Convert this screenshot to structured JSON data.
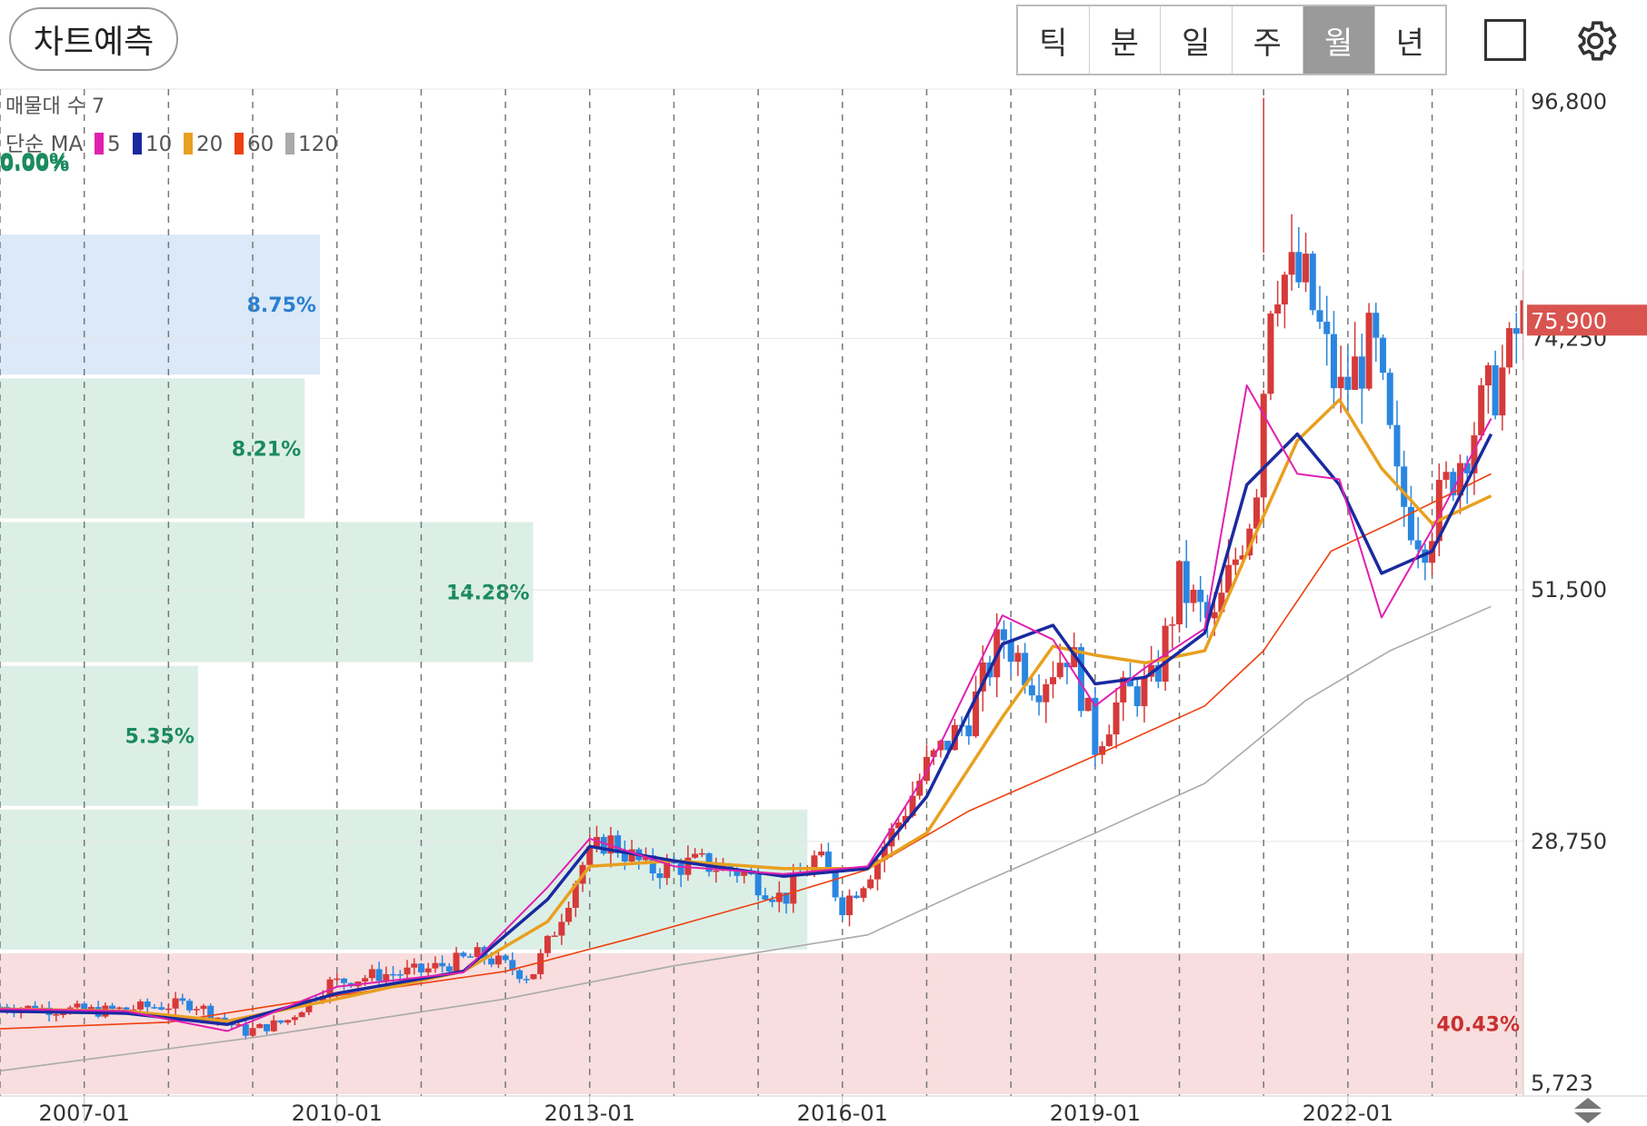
{
  "toolbar": {
    "predict_label": "차트예측",
    "periods": [
      "틱",
      "분",
      "일",
      "주",
      "월",
      "년"
    ],
    "active_period": "월"
  },
  "legend": {
    "volume_profile_label": "매물대 수 7",
    "ma_label": "단순 MA",
    "ma_series": [
      {
        "period": "5",
        "color": "#e020b0"
      },
      {
        "period": "10",
        "color": "#1a2aa0"
      },
      {
        "period": "20",
        "color": "#e8a020"
      },
      {
        "period": "60",
        "color": "#ee4010"
      },
      {
        "period": "120",
        "color": "#aaaaaa"
      }
    ]
  },
  "colors": {
    "up": "#d63a3a",
    "down": "#2a86e0",
    "last_price_bg": "#d9534f"
  },
  "chart_data": {
    "type": "candlestick",
    "x_ticks": [
      "2007-01",
      "2010-01",
      "2013-01",
      "2016-01",
      "2019-01",
      "2022-01"
    ],
    "x_range": [
      "2006-01",
      "2024-02"
    ],
    "y_ticks": [
      "96,800",
      "74,250",
      "51,500",
      "28,750",
      "5,723"
    ],
    "y_range": [
      5723,
      96800
    ],
    "last_price": "75,900",
    "grid": "vertical dashed",
    "volume_profile": [
      {
        "low": 5723,
        "high": 18800,
        "percent": "40.43%",
        "share": 1.0,
        "color": "red"
      },
      {
        "low": 18800,
        "high": 31800,
        "percent": "",
        "share": 0.53,
        "color": "green"
      },
      {
        "low": 31800,
        "high": 44800,
        "percent": "5.35%",
        "share": 0.13,
        "color": "green"
      },
      {
        "low": 44800,
        "high": 57800,
        "percent": "14.28%",
        "share": 0.35,
        "color": "green"
      },
      {
        "low": 57800,
        "high": 70800,
        "percent": "8.21%",
        "share": 0.2,
        "color": "green"
      },
      {
        "low": 70800,
        "high": 83800,
        "percent": "8.75%",
        "share": 0.21,
        "color": "blue"
      },
      {
        "low": 83800,
        "high": 96800,
        "percent": "0.00%",
        "share": 0.0,
        "color": "green"
      }
    ],
    "ma_values": {
      "5": [
        [
          2006.0,
          13600
        ],
        [
          2007.5,
          13400
        ],
        [
          2008.7,
          11600
        ],
        [
          2010.0,
          15600
        ],
        [
          2011.5,
          16900
        ],
        [
          2012.5,
          24600
        ],
        [
          2013.0,
          29000
        ],
        [
          2014.0,
          26500
        ],
        [
          2015.3,
          25800
        ],
        [
          2016.3,
          26500
        ],
        [
          2017.0,
          35000
        ],
        [
          2017.9,
          49200
        ],
        [
          2018.5,
          47000
        ],
        [
          2019.0,
          41000
        ],
        [
          2019.6,
          44500
        ],
        [
          2020.3,
          48000
        ],
        [
          2020.8,
          70000
        ],
        [
          2021.4,
          62000
        ],
        [
          2021.9,
          61500
        ],
        [
          2022.4,
          49000
        ],
        [
          2023.0,
          57000
        ],
        [
          2023.7,
          67000
        ]
      ],
      "10": [
        [
          2006.0,
          13400
        ],
        [
          2007.5,
          13200
        ],
        [
          2008.7,
          12200
        ],
        [
          2010.0,
          15000
        ],
        [
          2011.5,
          17000
        ],
        [
          2012.5,
          23500
        ],
        [
          2013.0,
          28300
        ],
        [
          2014.0,
          27000
        ],
        [
          2015.3,
          25600
        ],
        [
          2016.3,
          26300
        ],
        [
          2017.0,
          32800
        ],
        [
          2017.9,
          46600
        ],
        [
          2018.5,
          48300
        ],
        [
          2019.0,
          43000
        ],
        [
          2019.6,
          43600
        ],
        [
          2020.3,
          47600
        ],
        [
          2020.8,
          61000
        ],
        [
          2021.4,
          65600
        ],
        [
          2021.9,
          61000
        ],
        [
          2022.4,
          53000
        ],
        [
          2023.0,
          55000
        ],
        [
          2023.7,
          65600
        ]
      ],
      "20": [
        [
          2006.0,
          13600
        ],
        [
          2007.5,
          13400
        ],
        [
          2008.7,
          12500
        ],
        [
          2010.0,
          14500
        ],
        [
          2011.5,
          17000
        ],
        [
          2012.5,
          21500
        ],
        [
          2013.0,
          26500
        ],
        [
          2014.0,
          27000
        ],
        [
          2015.3,
          26300
        ],
        [
          2016.3,
          26300
        ],
        [
          2017.0,
          29500
        ],
        [
          2017.9,
          40000
        ],
        [
          2018.5,
          46400
        ],
        [
          2019.0,
          45600
        ],
        [
          2019.6,
          44900
        ],
        [
          2020.3,
          46000
        ],
        [
          2020.8,
          54800
        ],
        [
          2021.4,
          65000
        ],
        [
          2021.9,
          68700
        ],
        [
          2022.4,
          62500
        ],
        [
          2023.0,
          57500
        ],
        [
          2023.7,
          60000
        ]
      ],
      "60": [
        [
          2006.0,
          11800
        ],
        [
          2008.0,
          12400
        ],
        [
          2010.0,
          14800
        ],
        [
          2012.0,
          17000
        ],
        [
          2013.5,
          20000
        ],
        [
          2015.0,
          23200
        ],
        [
          2016.3,
          26200
        ],
        [
          2017.5,
          31500
        ],
        [
          2019.0,
          36500
        ],
        [
          2020.3,
          41000
        ],
        [
          2021.0,
          46000
        ],
        [
          2021.8,
          55000
        ],
        [
          2022.5,
          57500
        ],
        [
          2023.7,
          62000
        ]
      ],
      "120": [
        [
          2006.0,
          8000
        ],
        [
          2009.0,
          11000
        ],
        [
          2012.0,
          14500
        ],
        [
          2014.0,
          17500
        ],
        [
          2016.3,
          20300
        ],
        [
          2017.5,
          24500
        ],
        [
          2019.0,
          29500
        ],
        [
          2020.3,
          34000
        ],
        [
          2021.5,
          41500
        ],
        [
          2022.5,
          46000
        ],
        [
          2023.7,
          50000
        ]
      ]
    },
    "price_path": [
      [
        2006.0,
        13800
      ],
      [
        2006.6,
        13600
      ],
      [
        2007.2,
        13400
      ],
      [
        2007.8,
        13800
      ],
      [
        2008.3,
        14100
      ],
      [
        2008.9,
        11500
      ],
      [
        2009.4,
        12500
      ],
      [
        2009.9,
        15900
      ],
      [
        2010.5,
        16700
      ],
      [
        2011.0,
        17000
      ],
      [
        2011.7,
        18500
      ],
      [
        2012.3,
        16500
      ],
      [
        2012.6,
        21000
      ],
      [
        2012.9,
        26500
      ],
      [
        2013.2,
        29000
      ],
      [
        2013.7,
        26200
      ],
      [
        2014.3,
        26800
      ],
      [
        2014.8,
        26000
      ],
      [
        2015.3,
        23500
      ],
      [
        2015.7,
        27500
      ],
      [
        2016.0,
        23000
      ],
      [
        2016.3,
        25800
      ],
      [
        2016.7,
        31000
      ],
      [
        2017.0,
        35500
      ],
      [
        2017.5,
        40000
      ],
      [
        2017.9,
        47500
      ],
      [
        2018.3,
        43000
      ],
      [
        2018.7,
        46300
      ],
      [
        2019.0,
        37500
      ],
      [
        2019.3,
        41800
      ],
      [
        2019.7,
        43000
      ],
      [
        2020.0,
        52000
      ],
      [
        2020.4,
        48000
      ],
      [
        2020.9,
        60000
      ],
      [
        2021.1,
        80500
      ],
      [
        2021.5,
        79000
      ],
      [
        2021.9,
        69000
      ],
      [
        2022.3,
        74000
      ],
      [
        2022.6,
        60000
      ],
      [
        2022.9,
        56200
      ],
      [
        2023.3,
        63000
      ],
      [
        2023.6,
        68000
      ],
      [
        2023.9,
        72000
      ],
      [
        2024.05,
        75900
      ]
    ]
  }
}
